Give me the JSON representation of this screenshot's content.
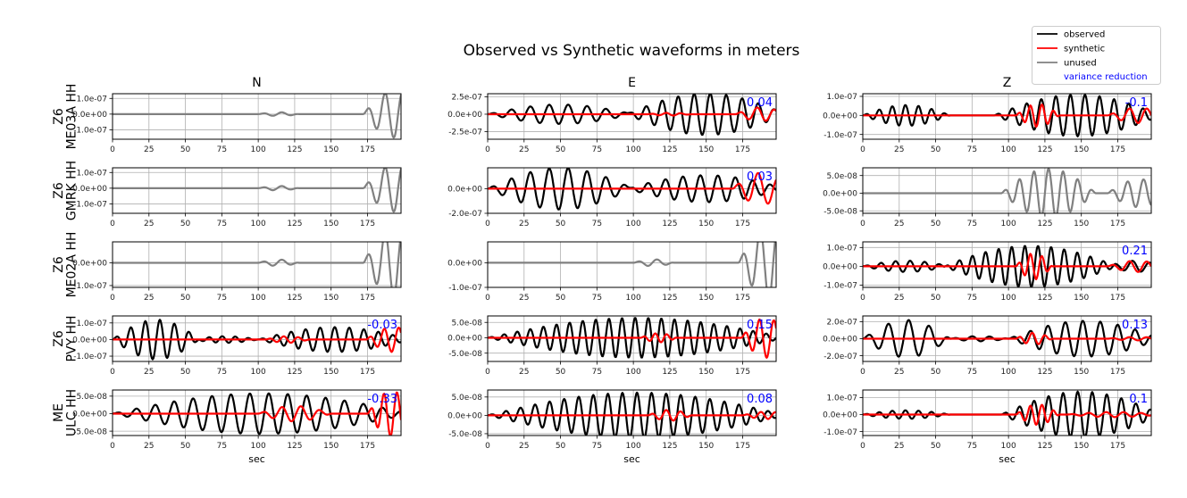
{
  "chart_data": {
    "type": "line",
    "title": "Observed vs Synthetic waveforms in meters",
    "xlabel": "sec",
    "xlim": [
      0,
      198
    ],
    "xticks": [
      0,
      25,
      50,
      75,
      100,
      125,
      150,
      175
    ],
    "grid": true,
    "legend": {
      "placement": "top-right",
      "entries": [
        {
          "label": "observed",
          "color": "#000000",
          "kind": "line"
        },
        {
          "label": "synthetic",
          "color": "#ff0000",
          "kind": "line"
        },
        {
          "label": "unused",
          "color": "#808080",
          "kind": "line"
        },
        {
          "label": "variance reduction",
          "color": "#0000ff",
          "kind": "text"
        }
      ]
    },
    "columns": [
      "N",
      "E",
      "Z"
    ],
    "waveform_model": "each trace = sum of tapered sinusoid packets [start_sec, end_sec, amplitude_m, period_sec]",
    "rows": [
      {
        "label_line1": "Z6",
        "label_line2": "ME03A HH",
        "panels": [
          {
            "component": "N",
            "ylim": [
              -1.6e-07,
              1.3e-07
            ],
            "yticks": [
              [
                1e-07,
                "1.0e-07"
              ],
              [
                0,
                "0.0e+00"
              ],
              [
                -1e-07,
                "-1.0e-07"
              ]
            ],
            "vr": null,
            "unused": [
              [
                100,
                128,
                1.2e-08,
                13
              ],
              [
                172,
                215,
                1.5e-07,
                12
              ]
            ]
          },
          {
            "component": "E",
            "ylim": [
              -3.6e-07,
              2.95e-07
            ],
            "yticks": [
              [
                2.5e-07,
                "2.5e-07"
              ],
              [
                0,
                "0.0e+00"
              ],
              [
                -2.5e-07,
                "-2.5e-07"
              ]
            ],
            "vr": "0.04",
            "observed": [
              [
                0,
                100,
                1.4e-07,
                13
              ],
              [
                95,
                205,
                3e-07,
                11
              ]
            ],
            "synthetic": [
              [
                110,
                140,
                2e-08,
                10
              ],
              [
                170,
                205,
                1e-07,
                12
              ]
            ]
          },
          {
            "component": "Z",
            "ylim": [
              -1.25e-07,
              1.14e-07
            ],
            "yticks": [
              [
                1e-07,
                "1.0e-07"
              ],
              [
                0,
                "0.0e+00"
              ],
              [
                -1e-07,
                "-1.0e-07"
              ]
            ],
            "vr": "-0.1",
            "observed": [
              [
                0,
                60,
                5.5e-08,
                9
              ],
              [
                90,
                205,
                1.1e-07,
                10
              ]
            ],
            "synthetic": [
              [
                105,
                135,
                6e-08,
                8
              ],
              [
                168,
                210,
                4e-08,
                12
              ]
            ]
          }
        ]
      },
      {
        "label_line1": "Z6",
        "label_line2": "GMRK HH",
        "panels": [
          {
            "component": "N",
            "ylim": [
              -1.6e-07,
              1.3e-07
            ],
            "yticks": [
              [
                1e-07,
                "1.0e-07"
              ],
              [
                0,
                "0.0e+00"
              ],
              [
                -1e-07,
                "-1.0e-07"
              ]
            ],
            "vr": null,
            "unused": [
              [
                100,
                128,
                1.4e-08,
                13
              ],
              [
                172,
                215,
                1.5e-07,
                12
              ]
            ]
          },
          {
            "component": "E",
            "ylim": [
              -2e-07,
              1.7e-07
            ],
            "yticks": [
              [
                0,
                "0.0e+00"
              ],
              [
                -2e-07,
                "-2.0e-07"
              ]
            ],
            "vr": "0.03",
            "observed": [
              [
                0,
                100,
                1.7e-07,
                13
              ],
              [
                95,
                205,
                1.1e-07,
                12
              ]
            ],
            "synthetic": [
              [
                168,
                208,
                1.3e-07,
                14
              ]
            ]
          },
          {
            "component": "Z",
            "ylim": [
              -5.7e-08,
              7.2e-08
            ],
            "yticks": [
              [
                5e-08,
                "5.0e-08"
              ],
              [
                0,
                "0.0e+00"
              ],
              [
                -5e-08,
                "-5.0e-08"
              ]
            ],
            "vr": null,
            "unused": [
              [
                95,
                160,
                7e-08,
                10
              ],
              [
                168,
                212,
                4e-08,
                11
              ]
            ]
          }
        ]
      },
      {
        "label_line1": "Z6",
        "label_line2": "ME02A HH",
        "panels": [
          {
            "component": "N",
            "ylim": [
              -1.08e-07,
              9.2e-08
            ],
            "yticks": [
              [
                0,
                "0.0e+00"
              ],
              [
                -1e-07,
                "-1.0e-07"
              ]
            ],
            "vr": null,
            "unused": [
              [
                100,
                128,
                1.4e-08,
                13
              ],
              [
                172,
                215,
                1.5e-07,
                12
              ]
            ]
          },
          {
            "component": "E",
            "ylim": [
              -1e-07,
              8.5e-08
            ],
            "yticks": [
              [
                0,
                "0.0e+00"
              ],
              [
                -1e-07,
                "-1.0e-07"
              ]
            ],
            "vr": null,
            "unused": [
              [
                100,
                128,
                1.4e-08,
                13
              ],
              [
                172,
                215,
                1.5e-07,
                12
              ]
            ]
          },
          {
            "component": "Z",
            "ylim": [
              -1.12e-07,
              1.3e-07
            ],
            "yticks": [
              [
                1e-07,
                "1.0e-07"
              ],
              [
                0,
                "0.0e+00"
              ],
              [
                -1e-07,
                "-1.0e-07"
              ]
            ],
            "vr": "0.21",
            "observed": [
              [
                0,
                60,
                3e-08,
                10
              ],
              [
                55,
                175,
                1.1e-07,
                9
              ],
              [
                170,
                205,
                3e-08,
                12
              ]
            ],
            "synthetic": [
              [
                105,
                130,
                7e-08,
                8
              ],
              [
                168,
                208,
                3e-08,
                12
              ]
            ]
          }
        ]
      },
      {
        "label_line1": "Z6",
        "label_line2": "PVY HH",
        "panels": [
          {
            "component": "N",
            "ylim": [
              -1.32e-07,
              1.42e-07
            ],
            "yticks": [
              [
                1e-07,
                "1.0e-07"
              ],
              [
                0,
                "0.0e+00"
              ],
              [
                -1e-07,
                "-1.0e-07"
              ]
            ],
            "vr": "-0.03",
            "observed": [
              [
                0,
                60,
                1.2e-07,
                10
              ],
              [
                55,
                100,
                2e-08,
                9
              ],
              [
                100,
                205,
                7.5e-08,
                10
              ]
            ],
            "synthetic": [
              [
                105,
                135,
                2e-08,
                10
              ],
              [
                174,
                212,
                7.5e-08,
                10
              ]
            ]
          },
          {
            "component": "E",
            "ylim": [
              -7.7e-08,
              7.1e-08
            ],
            "yticks": [
              [
                5e-08,
                "5.0e-08"
              ],
              [
                0,
                "0.0e+00"
              ],
              [
                -5e-08,
                "-5.0e-08"
              ]
            ],
            "vr": "0.15",
            "observed": [
              [
                0,
                205,
                6.5e-08,
                9
              ]
            ],
            "synthetic": [
              [
                105,
                130,
                1.5e-08,
                8
              ],
              [
                174,
                208,
                6.5e-08,
                10
              ]
            ]
          },
          {
            "component": "Z",
            "ylim": [
              -2.67e-07,
              2.67e-07
            ],
            "yticks": [
              [
                2e-07,
                "2.0e-07"
              ],
              [
                0,
                "0.0e+00"
              ],
              [
                -2e-07,
                "-2.0e-07"
              ]
            ],
            "vr": "0.13",
            "observed": [
              [
                0,
                60,
                2.2e-07,
                14
              ],
              [
                60,
                100,
                3e-08,
                12
              ],
              [
                100,
                205,
                2.1e-07,
                12
              ]
            ],
            "synthetic": [
              [
                105,
                130,
                7e-08,
                9
              ],
              [
                168,
                208,
                2e-08,
                12
              ]
            ]
          }
        ]
      },
      {
        "label_line1": "ME",
        "label_line2": "ULC HH",
        "panels": [
          {
            "component": "N",
            "ylim": [
              -6.25e-08,
              6.75e-08
            ],
            "yticks": [
              [
                5e-08,
                "5.0e-08"
              ],
              [
                0,
                "0.0e+00"
              ],
              [
                -5e-08,
                "-5.0e-08"
              ]
            ],
            "vr": "-0.33",
            "observed": [
              [
                0,
                205,
                5.8e-08,
                13
              ]
            ],
            "synthetic": [
              [
                100,
                150,
                2.2e-08,
                13
              ],
              [
                175,
                208,
                6.5e-08,
                9
              ]
            ]
          },
          {
            "component": "E",
            "ylim": [
              -5.5e-08,
              6.9e-08
            ],
            "yticks": [
              [
                5e-08,
                "5.0e-08"
              ],
              [
                0,
                "0.0e+00"
              ],
              [
                -5e-08,
                "-5.0e-08"
              ]
            ],
            "vr": "0.08",
            "observed": [
              [
                0,
                205,
                6.2e-08,
                10
              ]
            ],
            "synthetic": [
              [
                110,
                140,
                1.5e-08,
                10
              ],
              [
                175,
                208,
                1e-08,
                10
              ]
            ]
          },
          {
            "component": "Z",
            "ylim": [
              -1.23e-07,
              1.44e-07
            ],
            "yticks": [
              [
                1e-07,
                "1.0e-07"
              ],
              [
                0,
                "0.0e+00"
              ],
              [
                -1e-07,
                "-1.0e-07"
              ]
            ],
            "vr": "0.1",
            "observed": [
              [
                0,
                60,
                2.5e-08,
                9
              ],
              [
                95,
                205,
                1.35e-07,
                10
              ]
            ],
            "synthetic": [
              [
                105,
                135,
                6e-08,
                8
              ],
              [
                140,
                205,
                1.5e-08,
                12
              ]
            ]
          }
        ]
      }
    ]
  }
}
